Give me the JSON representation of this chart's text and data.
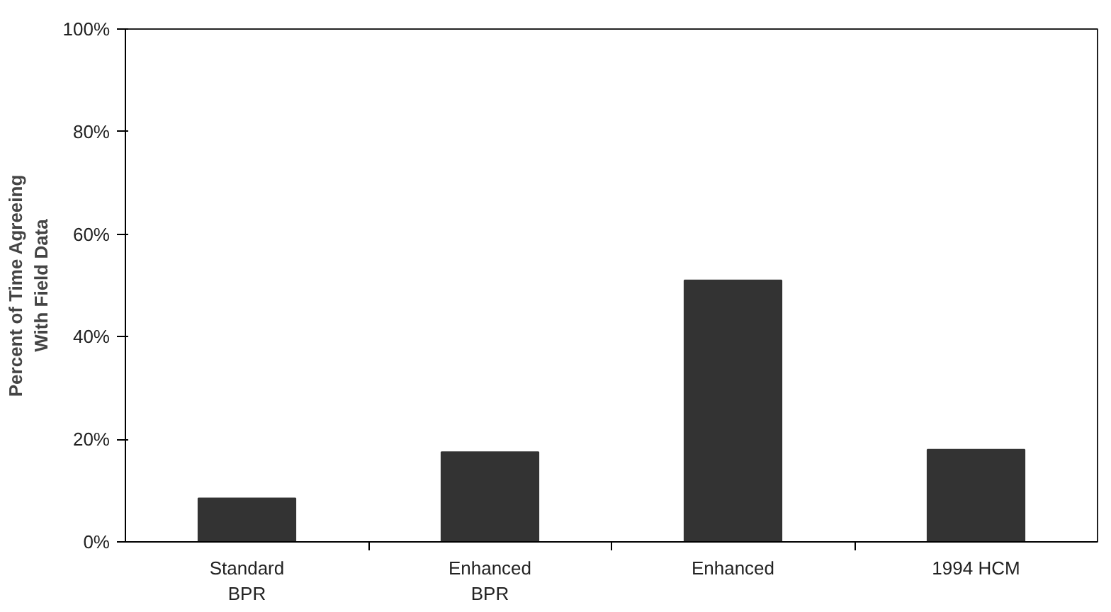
{
  "chart_data": {
    "type": "bar",
    "ylabel": "Percent of Time Agreeing\nWith Field Data",
    "categories": [
      "Standard\nBPR",
      "Enhanced\nBPR",
      "Enhanced",
      "1994 HCM"
    ],
    "values": [
      8.5,
      17.5,
      51,
      18
    ],
    "color": "#333333",
    "ylim": [
      0,
      100
    ],
    "yticks": [
      {
        "value": 0,
        "label": "0%"
      },
      {
        "value": 20,
        "label": "20%"
      },
      {
        "value": 40,
        "label": "40%"
      },
      {
        "value": 60,
        "label": "60%"
      },
      {
        "value": 80,
        "label": "80%"
      },
      {
        "value": 100,
        "label": "100%"
      }
    ],
    "grid": false
  }
}
